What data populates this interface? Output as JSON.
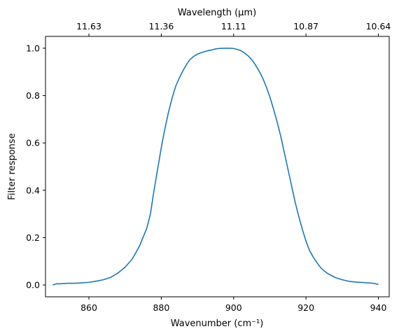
{
  "chart_data": {
    "type": "line",
    "title": "",
    "xlabel": "Wavenumber (cm⁻¹)",
    "ylabel": "Filter response",
    "top_xlabel": "Wavelength (μm)",
    "xlim": [
      848,
      943
    ],
    "ylim": [
      -0.05,
      1.05
    ],
    "grid": false,
    "line_color": "#1f77b4",
    "x_ticks": [
      860,
      880,
      900,
      920,
      940
    ],
    "y_ticks": [
      0.0,
      0.2,
      0.4,
      0.6,
      0.8,
      1.0
    ],
    "top_ticks": [
      {
        "value": 860,
        "label": "11.63"
      },
      {
        "value": 880,
        "label": "11.36"
      },
      {
        "value": 900,
        "label": "11.11"
      },
      {
        "value": 920,
        "label": "10.87"
      },
      {
        "value": 940,
        "label": "10.64"
      }
    ],
    "series": [
      {
        "x": [
          850,
          851,
          852,
          854,
          856,
          858,
          860,
          862,
          864,
          866,
          868,
          870,
          872,
          874,
          876,
          877,
          878,
          879,
          880,
          881,
          882,
          883,
          884,
          885,
          886,
          887,
          888,
          889,
          890,
          891,
          892,
          893,
          894,
          895,
          896,
          897,
          898,
          899,
          900,
          901,
          902,
          903,
          904,
          905,
          906,
          907,
          908,
          909,
          910,
          911,
          912,
          913,
          914,
          915,
          916,
          917,
          918,
          919,
          920,
          921,
          922,
          923,
          924,
          925,
          926,
          928,
          930,
          932,
          934,
          936,
          938,
          939,
          940
        ],
        "y": [
          0.0,
          0.005,
          0.005,
          0.007,
          0.007,
          0.009,
          0.011,
          0.016,
          0.022,
          0.032,
          0.05,
          0.075,
          0.11,
          0.165,
          0.24,
          0.3,
          0.4,
          0.49,
          0.58,
          0.66,
          0.73,
          0.79,
          0.84,
          0.875,
          0.905,
          0.932,
          0.953,
          0.966,
          0.975,
          0.981,
          0.986,
          0.99,
          0.993,
          0.997,
          0.999,
          1.0,
          1.0,
          1.0,
          0.999,
          0.995,
          0.99,
          0.98,
          0.968,
          0.952,
          0.93,
          0.905,
          0.875,
          0.838,
          0.795,
          0.745,
          0.69,
          0.63,
          0.56,
          0.49,
          0.42,
          0.35,
          0.29,
          0.235,
          0.185,
          0.145,
          0.118,
          0.095,
          0.074,
          0.06,
          0.048,
          0.032,
          0.022,
          0.015,
          0.012,
          0.01,
          0.008,
          0.006,
          0.002
        ]
      }
    ]
  }
}
